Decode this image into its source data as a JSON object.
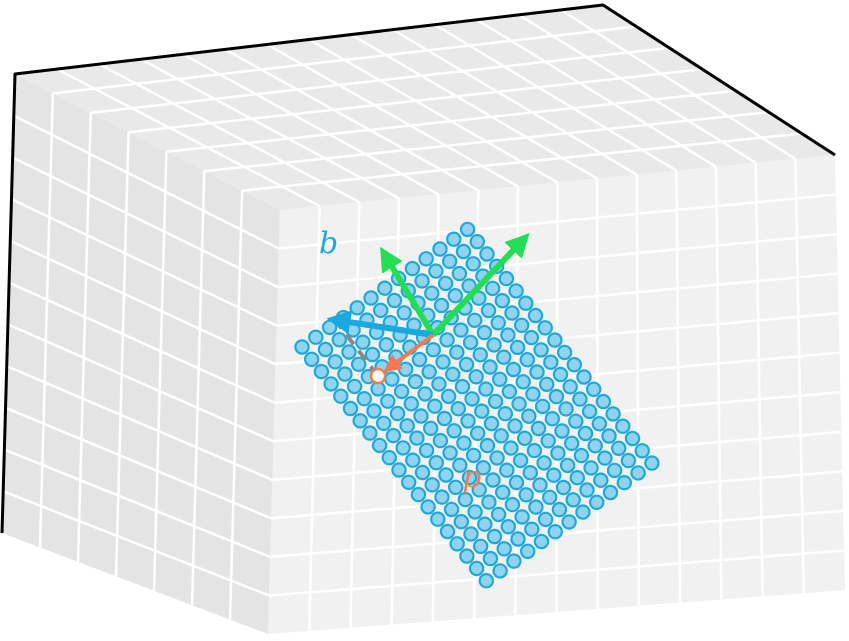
{
  "labels": {
    "vector_b": "b",
    "vector_p": "p"
  },
  "colors": {
    "cube_top": "#e9e9e9",
    "cube_left": "#e6e6e6",
    "cube_front": "#f0f0f0",
    "grid_line": "#ffffff",
    "edge": "#000000",
    "lattice_fill": "#8fd3f0",
    "lattice_stroke": "#1fa9d8",
    "vector_b": "#1aa8e0",
    "vector_p": "#f47a4f",
    "basis_vectors": "#22dd55",
    "guide_line": "#888888",
    "origin_marker": "#f47a4f"
  },
  "lattice": {
    "rows": 13,
    "cols": 20
  }
}
